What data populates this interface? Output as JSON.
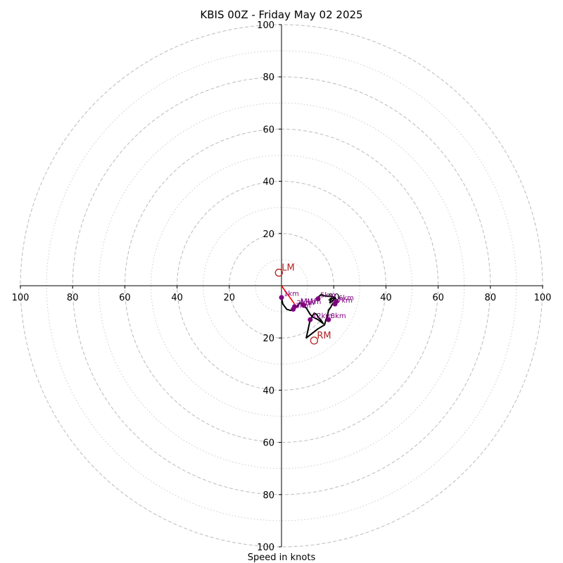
{
  "chart_data": {
    "type": "scatter",
    "title": "KBIS 00Z - Friday May 02 2025",
    "xlabel": "Speed in knots",
    "ylabel": "",
    "xlim": [
      -100,
      100
    ],
    "ylim": [
      -100,
      100
    ],
    "ring_ticks": [
      "100",
      "80",
      "60",
      "40",
      "20",
      "20",
      "40",
      "60",
      "80",
      "100"
    ],
    "major_rings": [
      20,
      40,
      60,
      80,
      100
    ],
    "minor_rings": [
      10,
      30,
      50,
      70,
      90
    ],
    "grid": true,
    "colors": {
      "trace": "#000000",
      "points": "#800080",
      "motion": "#b22222",
      "shear": "#ff0000",
      "grid": "#bbbbbb"
    },
    "hodograph_trace": [
      [
        0,
        -4.5
      ],
      [
        0.5,
        -7
      ],
      [
        2,
        -9
      ],
      [
        3.5,
        -9.5
      ],
      [
        4.5,
        -9
      ],
      [
        6,
        -8
      ],
      [
        7,
        -6.5
      ],
      [
        8,
        -7
      ],
      [
        8.5,
        -8
      ],
      [
        9.5,
        -8.5
      ],
      [
        11,
        -11
      ],
      [
        12,
        -12
      ],
      [
        14,
        -13
      ],
      [
        16,
        -14.5
      ],
      [
        15,
        -13
      ],
      [
        14,
        -12
      ],
      [
        13.5,
        -11
      ],
      [
        12.5,
        -10.5
      ],
      [
        11,
        -13
      ],
      [
        9.5,
        -20
      ],
      [
        14,
        -16.5
      ],
      [
        16.5,
        -15
      ],
      [
        17,
        -13
      ],
      [
        17.5,
        -12
      ],
      [
        18,
        -9.5
      ],
      [
        19,
        -8
      ],
      [
        19.5,
        -7
      ],
      [
        20,
        -6.5
      ],
      [
        21,
        -5.5
      ],
      [
        20.5,
        -4.5
      ],
      [
        19,
        -5
      ],
      [
        18.5,
        -6.5
      ],
      [
        19.5,
        -6
      ],
      [
        20.5,
        -4.5
      ],
      [
        19,
        -4
      ],
      [
        17,
        -4
      ],
      [
        15,
        -3.5
      ],
      [
        14,
        -4.5
      ]
    ],
    "height_points": [
      {
        "label": "1km",
        "x": 0,
        "y": -4.5
      },
      {
        "label": "2km",
        "x": 5,
        "y": -8
      },
      {
        "label": "3km",
        "x": 4.5,
        "y": -9
      },
      {
        "label": "4km",
        "x": 8.5,
        "y": -7.5
      },
      {
        "label": "5km",
        "x": 14,
        "y": -5
      },
      {
        "label": "6km",
        "x": 21,
        "y": -6
      },
      {
        "label": "7km",
        "x": 20.5,
        "y": -7
      },
      {
        "label": "8km",
        "x": 18,
        "y": -13
      },
      {
        "label": "12km",
        "x": 11,
        "y": -13
      }
    ],
    "storm_motion": [
      {
        "label": "LM",
        "x": -1,
        "y": 5
      },
      {
        "label": "RM",
        "x": 12.5,
        "y": -21
      }
    ],
    "mean_wind_label": "MW",
    "mean_wind": {
      "x": 8,
      "y": -6.5
    },
    "shear_vector": [
      [
        0,
        0
      ],
      [
        5,
        -7
      ]
    ]
  }
}
